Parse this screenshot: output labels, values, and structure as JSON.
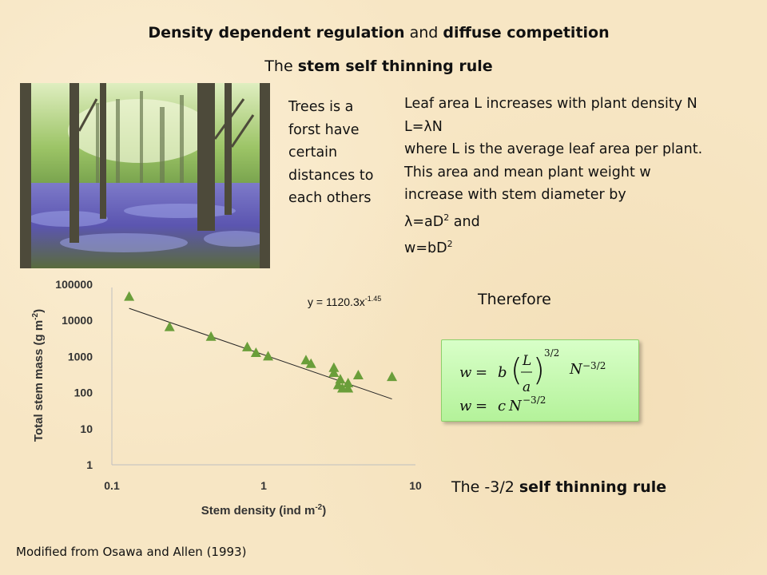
{
  "slide": {
    "title_bold_1": "Density dependent regulation",
    "title_plain": " and ",
    "title_bold_2": "diffuse competition",
    "subtitle_plain": "The ",
    "subtitle_bold": "stem self thinning rule",
    "tree_note": "Trees is a forst have certain distances to each others",
    "desc_line1": "Leaf area L increases with plant density N",
    "desc_line2_a": "L=",
    "desc_line2_lambda": "λ",
    "desc_line2_b": "N",
    "desc_line3": "where L is the average leaf area per plant.",
    "desc_line4": "This area and mean plant weight w",
    "desc_line5": "increase with stem diameter by",
    "desc_line6_lambda": "λ",
    "desc_line6_a": "=aD",
    "desc_line6_sup": "2",
    "desc_line6_b": " and",
    "desc_line7_a": "w=bD",
    "desc_line7_sup": "2",
    "therefore": "Therefore",
    "rule_plain": "The -3/2 ",
    "rule_bold": "self thinning rule",
    "credit": "Modified from Osawa and Allen (1993)"
  },
  "formula": {
    "w": "w",
    "eq": "=",
    "b": "b",
    "L": "L",
    "a": "a",
    "exp1": "3/2",
    "N": "N",
    "exp2": "−3/2",
    "c": "c",
    "exp3": "−3/2"
  },
  "chart_data": {
    "type": "scatter",
    "x_scale": "log",
    "y_scale": "log",
    "xlim": [
      0.1,
      10
    ],
    "ylim": [
      1,
      100000
    ],
    "xlabel": "Stem density (ind m",
    "xlabel_sup": "-2",
    "xlabel_end": ")",
    "ylabel": "Total stem mass (g m",
    "ylabel_sup": "-2",
    "ylabel_end": ")",
    "x_ticks": [
      {
        "value": 0.1,
        "label": "0.1"
      },
      {
        "value": 1,
        "label": "1"
      },
      {
        "value": 10,
        "label": "10"
      }
    ],
    "y_ticks": [
      {
        "value": 1,
        "label": "1"
      },
      {
        "value": 10,
        "label": "10"
      },
      {
        "value": 100,
        "label": "100"
      },
      {
        "value": 1000,
        "label": "1000"
      },
      {
        "value": 10000,
        "label": "10000"
      },
      {
        "value": 100000,
        "label": "100000"
      }
    ],
    "marker_color": "#6a9e3a",
    "trend_color": "#222222",
    "points": [
      {
        "x": 0.13,
        "y": 45000
      },
      {
        "x": 0.24,
        "y": 6500
      },
      {
        "x": 0.45,
        "y": 3500
      },
      {
        "x": 0.78,
        "y": 1800
      },
      {
        "x": 0.89,
        "y": 1250
      },
      {
        "x": 1.07,
        "y": 1000
      },
      {
        "x": 1.9,
        "y": 780
      },
      {
        "x": 2.05,
        "y": 620
      },
      {
        "x": 2.9,
        "y": 480
      },
      {
        "x": 2.9,
        "y": 350
      },
      {
        "x": 3.1,
        "y": 160
      },
      {
        "x": 3.6,
        "y": 130
      },
      {
        "x": 3.6,
        "y": 180
      },
      {
        "x": 3.2,
        "y": 230
      },
      {
        "x": 4.2,
        "y": 300
      },
      {
        "x": 3.3,
        "y": 130
      },
      {
        "x": 7.0,
        "y": 270
      }
    ],
    "trendline": {
      "a": 1120.3,
      "b": -1.45,
      "x_from": 0.13,
      "x_to": 7.0
    },
    "equation_text": "y = 1120.3x",
    "equation_sup": "-1.45"
  }
}
